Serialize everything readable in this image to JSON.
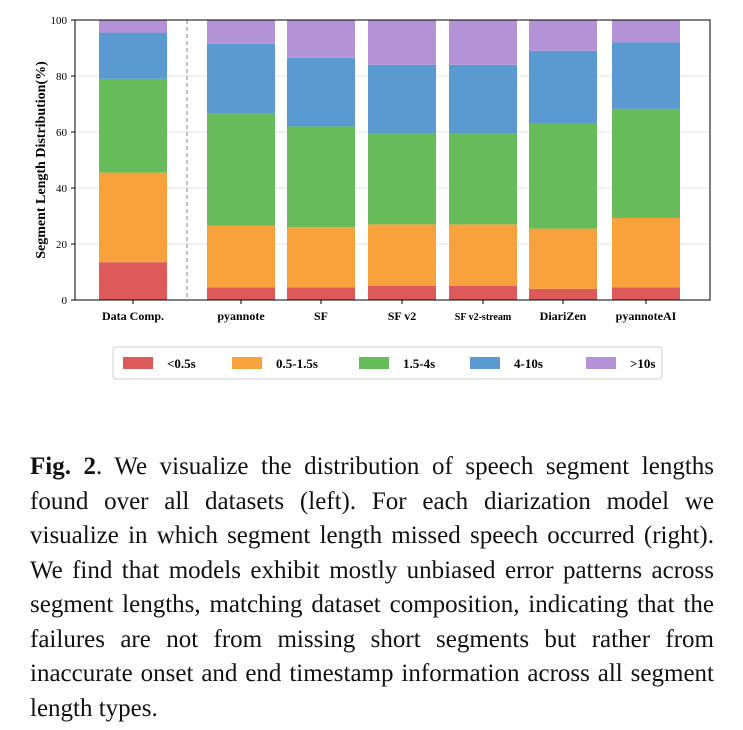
{
  "chart_data": {
    "type": "bar",
    "stacked": true,
    "title": "",
    "xlabel": "",
    "ylabel": "Segment Length Distribution(%)",
    "ylim": [
      0,
      100
    ],
    "yticks": [
      "0",
      "20",
      "40",
      "60",
      "80",
      "100"
    ],
    "grid": true,
    "legend_position": "bottom",
    "categories": [
      "Data Comp.",
      "pyannote",
      "SF",
      "SF v2",
      "SF v2-stream",
      "DiariZen",
      "pyannoteAI"
    ],
    "series": [
      {
        "name": "<0.5s",
        "color": "#dc5a5a",
        "values": [
          13.5,
          4.5,
          4.5,
          5.0,
          5.0,
          4.0,
          4.5
        ]
      },
      {
        "name": "0.5-1.5s",
        "color": "#f7a23c",
        "values": [
          32.0,
          22.0,
          21.5,
          22.0,
          22.0,
          21.5,
          24.8
        ]
      },
      {
        "name": "1.5-4s",
        "color": "#67bb5b",
        "values": [
          33.5,
          40.0,
          36.0,
          32.5,
          32.5,
          37.5,
          39.0
        ]
      },
      {
        "name": "4-10s",
        "color": "#5a9ad0",
        "values": [
          16.5,
          25.0,
          24.5,
          24.5,
          24.5,
          26.0,
          23.7
        ]
      },
      {
        "name": ">10s",
        "color": "#b393d6",
        "values": [
          4.5,
          8.5,
          13.5,
          16.0,
          16.0,
          11.0,
          8.0
        ]
      }
    ]
  },
  "caption": {
    "label": "Fig. 2",
    "text": ". We visualize the distribution of speech segment lengths found over all datasets (left). For each diarization model we visualize in which segment length missed speech occurred (right). We find that models exhibit mostly unbiased error patterns across segment lengths, matching dataset composition, indicating that the failures are not from missing short segments but rather from inaccurate onset and end timestamp information across all segment length types."
  }
}
